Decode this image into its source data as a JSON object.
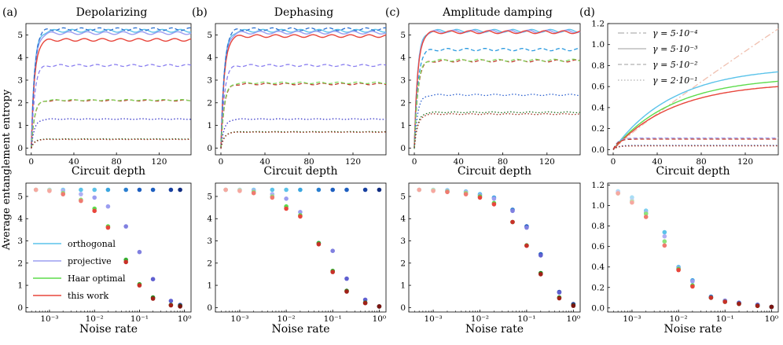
{
  "figure": {
    "y_label": "Average entanglement entropy",
    "top_xlabel": "Circuit depth",
    "bottom_xlabel": "Noise rate",
    "letters": [
      "(a)",
      "(b)",
      "(c)",
      "(d)"
    ],
    "titles": [
      "Depolarizing",
      "Dephasing",
      "Amplitude damping"
    ]
  },
  "colors": {
    "orthogonal": "#5bc3ea",
    "projective": "#9b9df0",
    "haar_optimal": "#5ddc4c",
    "this_work": "#e8463c"
  },
  "legend_methods": [
    {
      "label": "orthogonal",
      "color": "#5bc3ea"
    },
    {
      "label": "projective",
      "color": "#9b9df0"
    },
    {
      "label": "Haar optimal",
      "color": "#5ddc4c"
    },
    {
      "label": "this work",
      "color": "#e8463c"
    }
  ],
  "legend_gamma": [
    {
      "label": "γ = 5·10⁻⁴",
      "dash": "dashdot"
    },
    {
      "label": "γ = 5·10⁻³",
      "dash": "solid"
    },
    {
      "label": "γ = 5·10⁻²",
      "dash": "dashed"
    },
    {
      "label": "γ = 2·10⁻¹",
      "dash": "dotted"
    }
  ],
  "chart_data": [
    {
      "id": "a-top",
      "type": "line",
      "title": "Depolarizing",
      "letter": "(a)",
      "xlabel": "Circuit depth",
      "ylabel": "Average entanglement entropy",
      "xlim": [
        -5,
        150
      ],
      "ylim": [
        -0.3,
        5.5
      ],
      "xticks": [
        "0",
        "40",
        "80",
        "120"
      ],
      "yticks": [
        "0",
        "1",
        "2",
        "3",
        "4",
        "5"
      ],
      "series": [
        {
          "style": "solid",
          "color": "#5bc3ea",
          "plateau": 5.18
        },
        {
          "style": "solid",
          "color": "#9b9df0",
          "plateau": 5.08
        },
        {
          "style": "solid",
          "color": "#e8463c",
          "plateau": 4.78
        },
        {
          "style": "dashed",
          "color": "#2a6fcf",
          "plateau": 5.25
        },
        {
          "style": "dashed",
          "color": "#8a7ff0",
          "plateau": 3.65
        },
        {
          "style": "dashed",
          "color": "#c0392b",
          "plateau": 2.1
        },
        {
          "style": "dashed",
          "color": "#7dd85c",
          "plateau": 2.12
        },
        {
          "style": "dotted",
          "color": "#3535c8",
          "plateau": 1.28
        },
        {
          "style": "dotted",
          "color": "#1e6e1e",
          "plateau": 0.4
        },
        {
          "style": "dotted",
          "color": "#a03020",
          "plateau": 0.38
        }
      ]
    },
    {
      "id": "b-top",
      "type": "line",
      "title": "Dephasing",
      "letter": "(b)",
      "xlabel": "Circuit depth",
      "ylabel": "",
      "xlim": [
        -5,
        150
      ],
      "ylim": [
        -0.3,
        5.5
      ],
      "xticks": [
        "0",
        "40",
        "80",
        "120"
      ],
      "yticks": [
        "0",
        "1",
        "2",
        "3",
        "4",
        "5"
      ],
      "series": [
        {
          "style": "solid",
          "color": "#5bc3ea",
          "plateau": 5.18
        },
        {
          "style": "solid",
          "color": "#9b9df0",
          "plateau": 5.1
        },
        {
          "style": "solid",
          "color": "#e8463c",
          "plateau": 4.95
        },
        {
          "style": "dashed",
          "color": "#2a6fcf",
          "plateau": 5.25
        },
        {
          "style": "dashed",
          "color": "#8a7ff0",
          "plateau": 3.65
        },
        {
          "style": "dashed",
          "color": "#c0392b",
          "plateau": 2.83
        },
        {
          "style": "dashed",
          "color": "#7dd85c",
          "plateau": 2.88
        },
        {
          "style": "dotted",
          "color": "#3535c8",
          "plateau": 1.28
        },
        {
          "style": "dotted",
          "color": "#1e6e1e",
          "plateau": 0.72
        },
        {
          "style": "dotted",
          "color": "#a03020",
          "plateau": 0.7
        }
      ]
    },
    {
      "id": "c-top",
      "type": "line",
      "title": "Amplitude damping",
      "letter": "(c)",
      "xlabel": "Circuit depth",
      "ylabel": "",
      "xlim": [
        -5,
        150
      ],
      "ylim": [
        -0.3,
        5.5
      ],
      "xticks": [
        "0",
        "40",
        "80",
        "120"
      ],
      "yticks": [
        "0",
        "1",
        "2",
        "3",
        "4",
        "5"
      ],
      "series": [
        {
          "style": "solid",
          "color": "#5bc3ea",
          "plateau": 5.18
        },
        {
          "style": "solid",
          "color": "#9b9df0",
          "plateau": 5.15
        },
        {
          "style": "solid",
          "color": "#e8463c",
          "plateau": 5.12
        },
        {
          "style": "dashed",
          "color": "#2a9ae0",
          "plateau": 4.35
        },
        {
          "style": "dashed",
          "color": "#c0392b",
          "plateau": 3.85
        },
        {
          "style": "dashed",
          "color": "#7dd85c",
          "plateau": 3.88
        },
        {
          "style": "dotted",
          "color": "#2a5fcf",
          "plateau": 2.35
        },
        {
          "style": "dotted",
          "color": "#1e6e1e",
          "plateau": 1.58
        },
        {
          "style": "dotted",
          "color": "#a03020",
          "plateau": 1.5
        }
      ]
    },
    {
      "id": "d-top",
      "type": "line",
      "title": "",
      "letter": "(d)",
      "xlabel": "Circuit depth",
      "ylabel": "",
      "xlim": [
        -5,
        150
      ],
      "ylim": [
        -0.05,
        1.2
      ],
      "xticks": [
        "0",
        "40",
        "80",
        "120"
      ],
      "yticks": [
        "0.0",
        "0.2",
        "0.4",
        "0.6",
        "0.8",
        "1.0",
        "1.2"
      ],
      "series": [
        {
          "style": "dashdot",
          "color": "#f0c0b0",
          "end": 1.15,
          "kind": "linear"
        },
        {
          "style": "solid",
          "color": "#5bc3ea",
          "end": 0.74,
          "kind": "sat"
        },
        {
          "style": "solid",
          "color": "#5ddc4c",
          "end": 0.65,
          "kind": "sat"
        },
        {
          "style": "solid",
          "color": "#e8463c",
          "end": 0.6,
          "kind": "sat"
        },
        {
          "style": "dashed",
          "color": "#9b9df0",
          "plateau": 0.11,
          "kind": "flat"
        },
        {
          "style": "dashed",
          "color": "#c0392b",
          "plateau": 0.1,
          "kind": "flat"
        },
        {
          "style": "dotted",
          "color": "#2a4fa0",
          "plateau": 0.04,
          "kind": "flat"
        },
        {
          "style": "dotted",
          "color": "#a03020",
          "plateau": 0.035,
          "kind": "flat"
        }
      ]
    },
    {
      "id": "a-bottom",
      "type": "scatter",
      "xlabel": "Noise rate",
      "ylabel": "Average entanglement entropy",
      "xscale": "log",
      "xlim": [
        0.0003,
        1.4
      ],
      "ylim": [
        -0.2,
        5.6
      ],
      "xticks": [
        "10⁻³",
        "10⁻²",
        "10⁻¹",
        "10⁰"
      ],
      "yticks": [
        "0",
        "1",
        "2",
        "3",
        "4",
        "5"
      ],
      "x": [
        0.0005,
        0.001,
        0.002,
        0.005,
        0.01,
        0.02,
        0.05,
        0.1,
        0.2,
        0.5,
        0.8
      ],
      "series": [
        {
          "name": "orthogonal",
          "values": [
            5.3,
            5.3,
            5.3,
            5.3,
            5.3,
            5.3,
            5.3,
            5.3,
            5.3,
            5.3,
            5.3
          ]
        },
        {
          "name": "projective",
          "values": [
            5.3,
            5.3,
            5.25,
            5.1,
            4.95,
            4.55,
            3.65,
            2.5,
            1.28,
            0.3,
            0.12
          ]
        },
        {
          "name": "Haar optimal",
          "values": [
            5.3,
            5.28,
            5.15,
            4.85,
            4.45,
            3.65,
            2.15,
            1.05,
            0.45,
            0.12,
            0.08
          ]
        },
        {
          "name": "this work",
          "values": [
            5.3,
            5.25,
            5.1,
            4.8,
            4.35,
            3.6,
            2.05,
            1.0,
            0.4,
            0.1,
            0.05
          ]
        }
      ]
    },
    {
      "id": "b-bottom",
      "type": "scatter",
      "xlabel": "Noise rate",
      "ylabel": "",
      "xscale": "log",
      "xlim": [
        0.0003,
        1.4
      ],
      "ylim": [
        -0.2,
        5.6
      ],
      "xticks": [
        "10⁻³",
        "10⁻²",
        "10⁻¹",
        "10⁰"
      ],
      "yticks": [
        "0",
        "1",
        "2",
        "3",
        "4",
        "5"
      ],
      "x": [
        0.0005,
        0.001,
        0.002,
        0.005,
        0.01,
        0.02,
        0.05,
        0.1,
        0.2,
        0.5,
        1.0
      ],
      "series": [
        {
          "name": "orthogonal",
          "values": [
            5.3,
            5.3,
            5.3,
            5.3,
            5.3,
            5.3,
            5.3,
            5.3,
            5.3,
            5.3,
            5.3
          ]
        },
        {
          "name": "projective",
          "values": [
            5.3,
            5.3,
            5.25,
            5.1,
            4.9,
            4.3,
            2.9,
            2.55,
            1.3,
            0.35,
            0.05
          ]
        },
        {
          "name": "Haar optimal",
          "values": [
            5.3,
            5.28,
            5.2,
            5.0,
            4.55,
            4.15,
            2.9,
            1.65,
            0.75,
            0.22,
            0.05
          ]
        },
        {
          "name": "this work",
          "values": [
            5.3,
            5.25,
            5.15,
            4.95,
            4.45,
            4.1,
            2.85,
            1.6,
            0.72,
            0.2,
            0.05
          ]
        }
      ]
    },
    {
      "id": "c-bottom",
      "type": "scatter",
      "xlabel": "Noise rate",
      "ylabel": "",
      "xscale": "log",
      "xlim": [
        0.0003,
        1.4
      ],
      "ylim": [
        -0.2,
        5.6
      ],
      "xticks": [
        "10⁻³",
        "10⁻²",
        "10⁻¹",
        "10⁰"
      ],
      "yticks": [
        "0",
        "1",
        "2",
        "3",
        "4",
        "5"
      ],
      "x": [
        0.0005,
        0.001,
        0.002,
        0.005,
        0.01,
        0.02,
        0.05,
        0.1,
        0.2,
        0.5,
        1.0
      ],
      "series": [
        {
          "name": "orthogonal",
          "values": [
            5.3,
            5.3,
            5.28,
            5.22,
            5.1,
            4.95,
            4.4,
            3.65,
            2.4,
            0.7,
            0.15
          ]
        },
        {
          "name": "projective",
          "values": [
            5.3,
            5.28,
            5.25,
            5.2,
            5.05,
            4.9,
            4.35,
            3.6,
            2.35,
            0.68,
            0.12
          ]
        },
        {
          "name": "Haar optimal",
          "values": [
            5.3,
            5.28,
            5.22,
            5.15,
            5.0,
            4.7,
            3.85,
            2.8,
            1.55,
            0.45,
            0.1
          ]
        },
        {
          "name": "this work",
          "values": [
            5.3,
            5.25,
            5.2,
            5.1,
            4.95,
            4.65,
            3.85,
            2.78,
            1.5,
            0.42,
            0.08
          ]
        }
      ]
    },
    {
      "id": "d-bottom",
      "type": "scatter",
      "xlabel": "Noise rate",
      "ylabel": "",
      "xscale": "log",
      "xlim": [
        0.0003,
        1.4
      ],
      "ylim": [
        -0.04,
        1.22
      ],
      "xticks": [
        "10⁻³",
        "10⁻²",
        "10⁻¹",
        "10⁰"
      ],
      "yticks": [
        "0.0",
        "0.2",
        "0.4",
        "0.6",
        "0.8",
        "1.0",
        "1.2"
      ],
      "x": [
        0.0005,
        0.001,
        0.002,
        0.005,
        0.01,
        0.02,
        0.05,
        0.1,
        0.2,
        0.5,
        1.0
      ],
      "series": [
        {
          "name": "orthogonal",
          "values": [
            1.14,
            1.08,
            0.95,
            0.74,
            0.4,
            0.27,
            0.11,
            0.07,
            0.05,
            0.03,
            0.01
          ]
        },
        {
          "name": "projective",
          "values": [
            1.13,
            1.05,
            0.93,
            0.7,
            0.39,
            0.26,
            0.1,
            0.07,
            0.05,
            0.03,
            0.01
          ]
        },
        {
          "name": "Haar optimal",
          "values": [
            1.12,
            1.04,
            0.92,
            0.65,
            0.38,
            0.22,
            0.1,
            0.06,
            0.04,
            0.02,
            0.01
          ]
        },
        {
          "name": "this work",
          "values": [
            1.12,
            1.03,
            0.89,
            0.61,
            0.37,
            0.21,
            0.1,
            0.06,
            0.04,
            0.02,
            0.01
          ]
        }
      ]
    }
  ]
}
